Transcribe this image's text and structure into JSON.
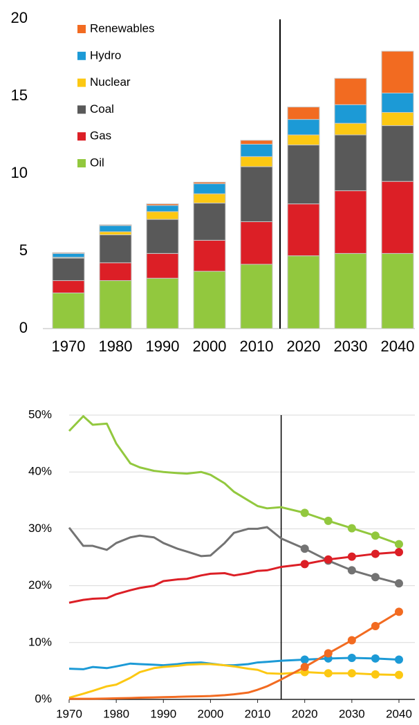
{
  "chart_data": [
    {
      "type": "stacked_bar",
      "categories": [
        "1970",
        "1980",
        "1990",
        "2000",
        "2010",
        "2020",
        "2030",
        "2040"
      ],
      "series": [
        {
          "name": "Oil",
          "color": "#92c83e",
          "values": [
            2.3,
            3.1,
            3.25,
            3.7,
            4.15,
            4.7,
            4.85,
            4.85
          ]
        },
        {
          "name": "Gas",
          "color": "#dc1f26",
          "values": [
            0.8,
            1.15,
            1.6,
            2.0,
            2.75,
            3.35,
            4.05,
            4.65
          ]
        },
        {
          "name": "Coal",
          "color": "#595959",
          "values": [
            1.45,
            1.8,
            2.2,
            2.4,
            3.55,
            3.8,
            3.6,
            3.6
          ]
        },
        {
          "name": "Nuclear",
          "color": "#fcc813",
          "values": [
            0.05,
            0.2,
            0.5,
            0.6,
            0.65,
            0.65,
            0.75,
            0.85
          ]
        },
        {
          "name": "Hydro",
          "color": "#1c9ad6",
          "values": [
            0.25,
            0.4,
            0.4,
            0.65,
            0.8,
            1.0,
            1.2,
            1.25
          ]
        },
        {
          "name": "Renewables",
          "color": "#f26b21",
          "values": [
            0.05,
            0.05,
            0.1,
            0.1,
            0.25,
            0.8,
            1.7,
            2.7
          ]
        }
      ],
      "ylim": [
        0,
        20
      ],
      "yticks": [
        0,
        5,
        10,
        15,
        20
      ],
      "grid": false,
      "legend": "top-left"
    },
    {
      "type": "line",
      "x": [
        1970,
        1973,
        1975,
        1978,
        1980,
        1983,
        1985,
        1988,
        1990,
        1993,
        1995,
        1998,
        2000,
        2003,
        2005,
        2008,
        2010,
        2012,
        2015,
        2020,
        2025,
        2030,
        2035,
        2040
      ],
      "series": [
        {
          "name": "Oil",
          "color": "#92c83e",
          "values": [
            47.2,
            49.8,
            48.3,
            48.5,
            45,
            41.5,
            40.8,
            40.2,
            40,
            39.8,
            39.7,
            40,
            39.5,
            38,
            36.5,
            35,
            34,
            33.6,
            33.8,
            32.8,
            31.4,
            30.1,
            28.8,
            27.3
          ]
        },
        {
          "name": "Coal",
          "color": "#737373",
          "values": [
            30.2,
            27,
            27,
            26.3,
            27.5,
            28.5,
            28.8,
            28.5,
            27.5,
            26.5,
            26,
            25.2,
            25.3,
            27.5,
            29.3,
            30,
            30,
            30.3,
            28.3,
            26.5,
            24.4,
            22.7,
            21.5,
            20.4
          ]
        },
        {
          "name": "Gas",
          "color": "#dc1f26",
          "values": [
            17,
            17.5,
            17.7,
            17.8,
            18.5,
            19.2,
            19.6,
            20,
            20.8,
            21.1,
            21.2,
            21.8,
            22.1,
            22.2,
            21.8,
            22.2,
            22.6,
            22.7,
            23.3,
            23.8,
            24.6,
            25.1,
            25.6,
            25.9
          ]
        },
        {
          "name": "Hydro",
          "color": "#1c9ad6",
          "values": [
            5.4,
            5.3,
            5.7,
            5.5,
            5.8,
            6.3,
            6.2,
            6.1,
            6,
            6.2,
            6.4,
            6.5,
            6.3,
            6.0,
            6.0,
            6.2,
            6.5,
            6.6,
            6.8,
            7.0,
            7.2,
            7.3,
            7.2,
            7.0
          ]
        },
        {
          "name": "Nuclear",
          "color": "#fcc813",
          "values": [
            0.3,
            1,
            1.5,
            2.3,
            2.6,
            3.8,
            4.8,
            5.5,
            5.7,
            5.9,
            6.1,
            6.2,
            6.2,
            6.0,
            5.8,
            5.4,
            5.2,
            4.6,
            4.5,
            4.8,
            4.6,
            4.6,
            4.4,
            4.3
          ]
        },
        {
          "name": "Renewables",
          "color": "#f26b21",
          "values": [
            0.1,
            0.1,
            0.1,
            0.15,
            0.2,
            0.25,
            0.3,
            0.35,
            0.4,
            0.45,
            0.5,
            0.55,
            0.6,
            0.75,
            0.9,
            1.2,
            1.7,
            2.3,
            3.5,
            5.7,
            8.1,
            10.4,
            12.9,
            15.4
          ]
        }
      ],
      "xlim": [
        1970,
        2040
      ],
      "xticks": [
        1970,
        1980,
        1990,
        2000,
        2010,
        2020,
        2030,
        2040
      ],
      "ylim": [
        0,
        50
      ],
      "yticks": [
        {
          "value": 0,
          "label": "0%"
        },
        {
          "value": 10,
          "label": "10%"
        },
        {
          "value": 20,
          "label": "20%"
        },
        {
          "value": 30,
          "label": "30%"
        },
        {
          "value": 40,
          "label": "40%"
        },
        {
          "value": 50,
          "label": "50%"
        }
      ],
      "grid": true,
      "divider": 2015
    }
  ]
}
